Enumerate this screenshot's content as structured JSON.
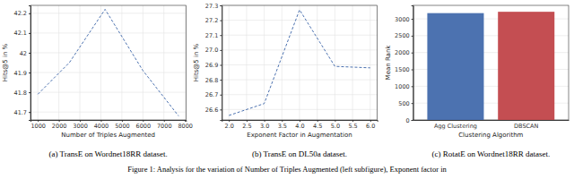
{
  "chart_data": [
    {
      "type": "line",
      "title": "(a) TransE on Wordnet18RR dataset.",
      "xlabel": "Number of Triples Augmented",
      "ylabel": "Hits@5 in %",
      "x": [
        1000,
        2500,
        4200,
        6000,
        7700
      ],
      "values": [
        41.79,
        41.95,
        42.22,
        41.91,
        41.68
      ],
      "color": "#4c72b0",
      "line_style": "dashed",
      "grid": true,
      "xlim": [
        650,
        8050
      ],
      "xticks": [
        1000,
        2000,
        3000,
        4000,
        5000,
        6000,
        7000,
        8000
      ],
      "ylim": [
        41.66,
        42.24
      ],
      "yticks": [
        41.7,
        41.8,
        41.9,
        42.0,
        42.1,
        42.2
      ]
    },
    {
      "type": "line",
      "title": "(b) TransE on DL50a dataset.",
      "xlabel": "Exponent Factor in Augmentation",
      "ylabel": "Hits@5 in %",
      "x": [
        2,
        3,
        4,
        5,
        6
      ],
      "values": [
        26.56,
        26.64,
        27.27,
        26.89,
        26.88
      ],
      "color": "#4c72b0",
      "line_style": "dashed",
      "grid": true,
      "xlim": [
        1.8,
        6.2
      ],
      "xticks": [
        {
          "value": 2,
          "label": "2.0"
        },
        2.5,
        {
          "value": 3,
          "label": "3.0"
        },
        3.5,
        {
          "value": 4,
          "label": "4.0"
        },
        4.5,
        {
          "value": 5,
          "label": "5.0"
        },
        5.5,
        {
          "value": 6,
          "label": "6.0"
        }
      ],
      "ylim": [
        26.53,
        27.3
      ],
      "yticks": [
        26.6,
        26.7,
        26.8,
        26.9,
        {
          "value": 27,
          "label": "27.0"
        },
        27.1,
        27.2,
        27.3
      ]
    },
    {
      "type": "bar",
      "title": "(c) RotatE on Wordnet18RR dataset.",
      "xlabel": "Clustering Algorithm",
      "ylabel": "Mean Rank",
      "categories": [
        "Agg Clustering",
        "DBSCAN"
      ],
      "values": [
        3170,
        3210
      ],
      "colors": [
        "#4c72b0",
        "#c44e52"
      ],
      "grid": true,
      "ylim": [
        0,
        3400
      ],
      "yticks": [
        0,
        500,
        1000,
        1500,
        2000,
        2500,
        3000
      ]
    }
  ],
  "figure_caption": "Figure 1: Analysis for the variation of Number of Triples Augmented (left subfigure), Exponent factor in"
}
